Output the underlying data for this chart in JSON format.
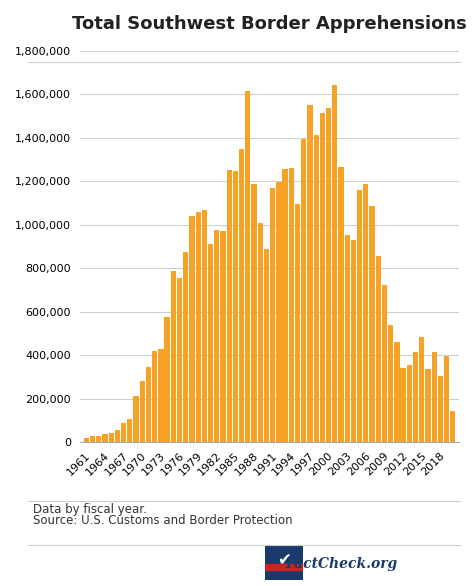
{
  "title": "Total Southwest Border Apprehensions",
  "bar_color": "#F5A227",
  "bg_color": "#FFFFFF",
  "grid_color": "#CCCCCC",
  "footnote1": "Data by fiscal year.",
  "footnote2": "Source: U.S. Customs and Border Protection",
  "years": [
    1960,
    1961,
    1962,
    1963,
    1964,
    1965,
    1966,
    1967,
    1968,
    1969,
    1970,
    1971,
    1972,
    1973,
    1974,
    1975,
    1976,
    1977,
    1978,
    1979,
    1980,
    1981,
    1982,
    1983,
    1984,
    1985,
    1986,
    1987,
    1988,
    1989,
    1990,
    1991,
    1992,
    1993,
    1994,
    1995,
    1996,
    1997,
    1998,
    1999,
    2000,
    2001,
    2002,
    2003,
    2004,
    2005,
    2006,
    2007,
    2008,
    2009,
    2010,
    2011,
    2012,
    2013,
    2014,
    2015,
    2016,
    2017,
    2018,
    2019
  ],
  "values": [
    21081,
    29651,
    30272,
    39015,
    43844,
    55349,
    89751,
    107695,
    212057,
    283557,
    345353,
    420126,
    430213,
    577118,
    788145,
    756819,
    875915,
    1042215,
    1057977,
    1069400,
    910361,
    975780,
    970246,
    1251070,
    1246981,
    1348749,
    1615854,
    1190488,
    1008145,
    891147,
    1169939,
    1197875,
    1258482,
    1263490,
    1094719,
    1394554,
    1550051,
    1412953,
    1516680,
    1537000,
    1643679,
    1266214,
    955310,
    931557,
    1160395,
    1189074,
    1089096,
    858638,
    723825,
    540865,
    463382,
    340252,
    356873,
    414397,
    486651,
    337117,
    415816,
    303916,
    396579,
    144278
  ],
  "ylim": [
    0,
    1850000
  ],
  "yticks": [
    0,
    200000,
    400000,
    600000,
    800000,
    1000000,
    1200000,
    1400000,
    1600000,
    1800000
  ],
  "xtick_years": [
    1961,
    1964,
    1967,
    1970,
    1973,
    1976,
    1979,
    1982,
    1985,
    1988,
    1991,
    1994,
    1997,
    2000,
    2003,
    2006,
    2009,
    2012,
    2015,
    2018
  ],
  "title_fontsize": 13,
  "tick_fontsize": 8,
  "footnote_fontsize": 8.5
}
